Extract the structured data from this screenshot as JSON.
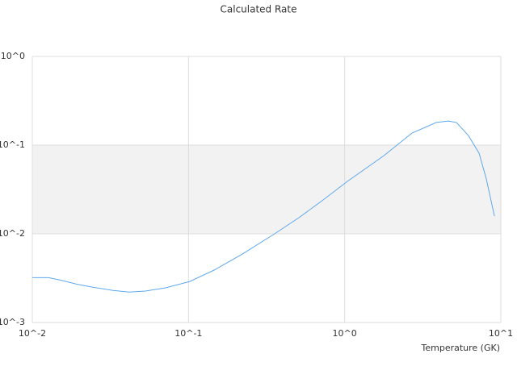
{
  "chart_data": {
    "type": "line",
    "title": "Calculated Rate",
    "x_label": "Temperature (GK)",
    "x": [
      0.01,
      0.0127,
      0.0152,
      0.0193,
      0.0244,
      0.0329,
      0.0418,
      0.053,
      0.0714,
      0.102,
      0.146,
      0.221,
      0.356,
      0.509,
      0.728,
      1.04,
      1.78,
      2.7,
      3.86,
      4.61,
      5.2,
      6.2,
      7.26,
      8.07,
      9.1
    ],
    "series": [
      {
        "color": "#5ea8ec",
        "values": [
          0.0032,
          0.0032,
          0.003,
          0.0027,
          0.0025,
          0.0023,
          0.0022,
          0.00226,
          0.00246,
          0.0029,
          0.0039,
          0.0059,
          0.01,
          0.0152,
          0.0241,
          0.039,
          0.076,
          0.137,
          0.18,
          0.187,
          0.18,
          0.128,
          0.081,
          0.0416,
          0.0158
        ]
      }
    ],
    "xlog": true,
    "ylog": true,
    "xlim": [
      0.01,
      10
    ],
    "ylim": [
      0.001,
      1
    ],
    "xticks": [
      {
        "value": 0.01,
        "label": "10^-2"
      },
      {
        "value": 0.1,
        "label": "10^-1"
      },
      {
        "value": 1,
        "label": "10^0"
      },
      {
        "value": 10,
        "label": "10^1"
      }
    ],
    "yticks": [
      {
        "value": 0.001,
        "label": "10^-3"
      },
      {
        "value": 0.01,
        "label": "10^-2"
      },
      {
        "value": 0.1,
        "label": "10^-1"
      },
      {
        "value": 1,
        "label": "10^0"
      }
    ],
    "grid": true,
    "band_color": "#f2f2f2"
  }
}
